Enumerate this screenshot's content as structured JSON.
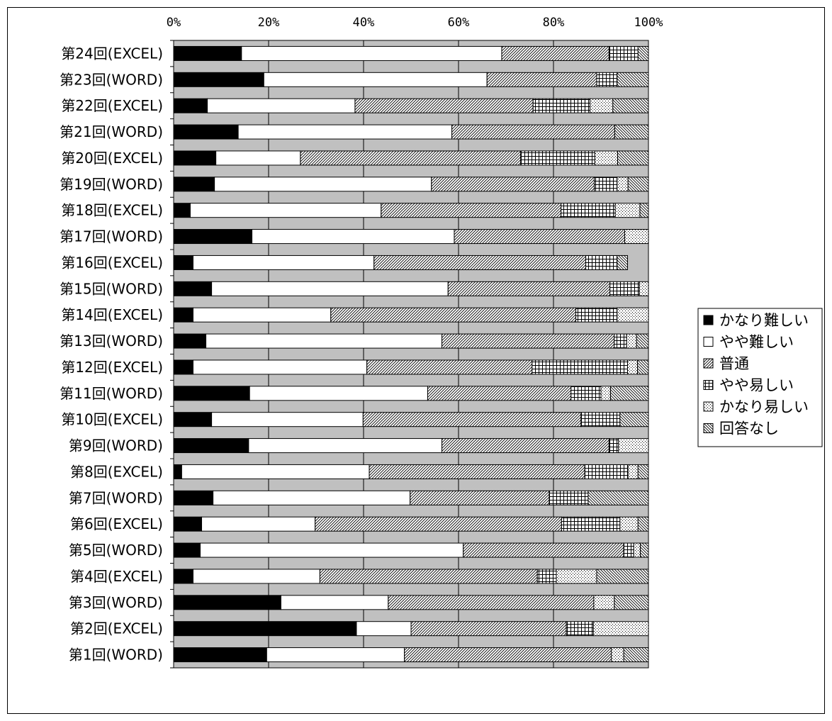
{
  "chart_data": {
    "type": "bar",
    "orientation": "horizontal",
    "stacked": "percent",
    "title": "",
    "xlabel": "",
    "ylabel": "",
    "xlim": [
      0,
      100
    ],
    "x_ticks": [
      "0%",
      "20%",
      "40%",
      "60%",
      "80%",
      "100%"
    ],
    "x_tick_position": "top",
    "grid": true,
    "legend_position": "right",
    "plot_background": "#c0c0c0",
    "categories": [
      "第24回(EXCEL)",
      "第23回(WORD)",
      "第22回(EXCEL)",
      "第21回(WORD)",
      "第20回(EXCEL)",
      "第19回(WORD)",
      "第18回(EXCEL)",
      "第17回(WORD)",
      "第16回(EXCEL)",
      "第15回(WORD)",
      "第14回(EXCEL)",
      "第13回(WORD)",
      "第12回(EXCEL)",
      "第11回(WORD)",
      "第10回(EXCEL)",
      "第9回(WORD)",
      "第8回(EXCEL)",
      "第7回(WORD)",
      "第6回(EXCEL)",
      "第5回(WORD)",
      "第4回(EXCEL)",
      "第3回(WORD)",
      "第2回(EXCEL)",
      "第1回(WORD)"
    ],
    "series": [
      {
        "name": "かなり難しい",
        "pattern": "solid-black",
        "values": [
          14.3,
          19.0,
          7.1,
          13.6,
          8.9,
          8.6,
          3.5,
          16.5,
          4.1,
          8.0,
          4.1,
          6.8,
          4.1,
          16.0,
          8.0,
          15.8,
          1.7,
          8.3,
          5.9,
          5.6,
          4.1,
          22.6,
          38.5,
          19.6
        ]
      },
      {
        "name": "やや難しい",
        "pattern": "white",
        "values": [
          54.8,
          47.0,
          31.1,
          45.0,
          17.8,
          45.7,
          40.2,
          42.6,
          38.1,
          49.8,
          29.0,
          49.7,
          36.6,
          37.5,
          31.9,
          40.7,
          39.5,
          41.5,
          23.9,
          55.4,
          26.7,
          22.6,
          11.5,
          29.0
        ]
      },
      {
        "name": "普通",
        "pattern": "diagonal",
        "values": [
          22.6,
          23.1,
          37.5,
          34.3,
          46.4,
          34.3,
          37.9,
          35.9,
          44.6,
          34.1,
          51.6,
          36.3,
          34.8,
          30.2,
          45.9,
          35.2,
          45.4,
          29.3,
          51.9,
          33.8,
          45.8,
          43.3,
          32.7,
          43.6
        ]
      },
      {
        "name": "やや易しい",
        "pattern": "grid",
        "values": [
          6.1,
          4.3,
          12.0,
          0,
          15.6,
          4.8,
          11.4,
          0,
          6.6,
          6.2,
          8.7,
          2.6,
          20.1,
          6.3,
          8.2,
          2.0,
          9.1,
          8.2,
          12.3,
          2.1,
          4.0,
          0,
          5.7,
          0
        ]
      },
      {
        "name": "かなり易しい",
        "pattern": "dotted",
        "values": [
          0,
          0,
          4.8,
          0,
          4.8,
          2.3,
          5.2,
          5.0,
          0,
          1.9,
          6.6,
          2.1,
          2.1,
          2.0,
          0,
          6.3,
          2.1,
          0,
          3.8,
          1.4,
          8.5,
          4.3,
          11.6,
          2.6
        ]
      },
      {
        "name": "回答なし",
        "pattern": "backslash",
        "values": [
          2.2,
          6.6,
          7.5,
          7.1,
          6.5,
          4.3,
          1.8,
          0,
          2.2,
          0,
          0,
          2.5,
          2.3,
          8.0,
          6.0,
          0,
          2.2,
          12.7,
          2.2,
          1.7,
          10.9,
          7.2,
          0,
          5.2
        ]
      }
    ]
  }
}
